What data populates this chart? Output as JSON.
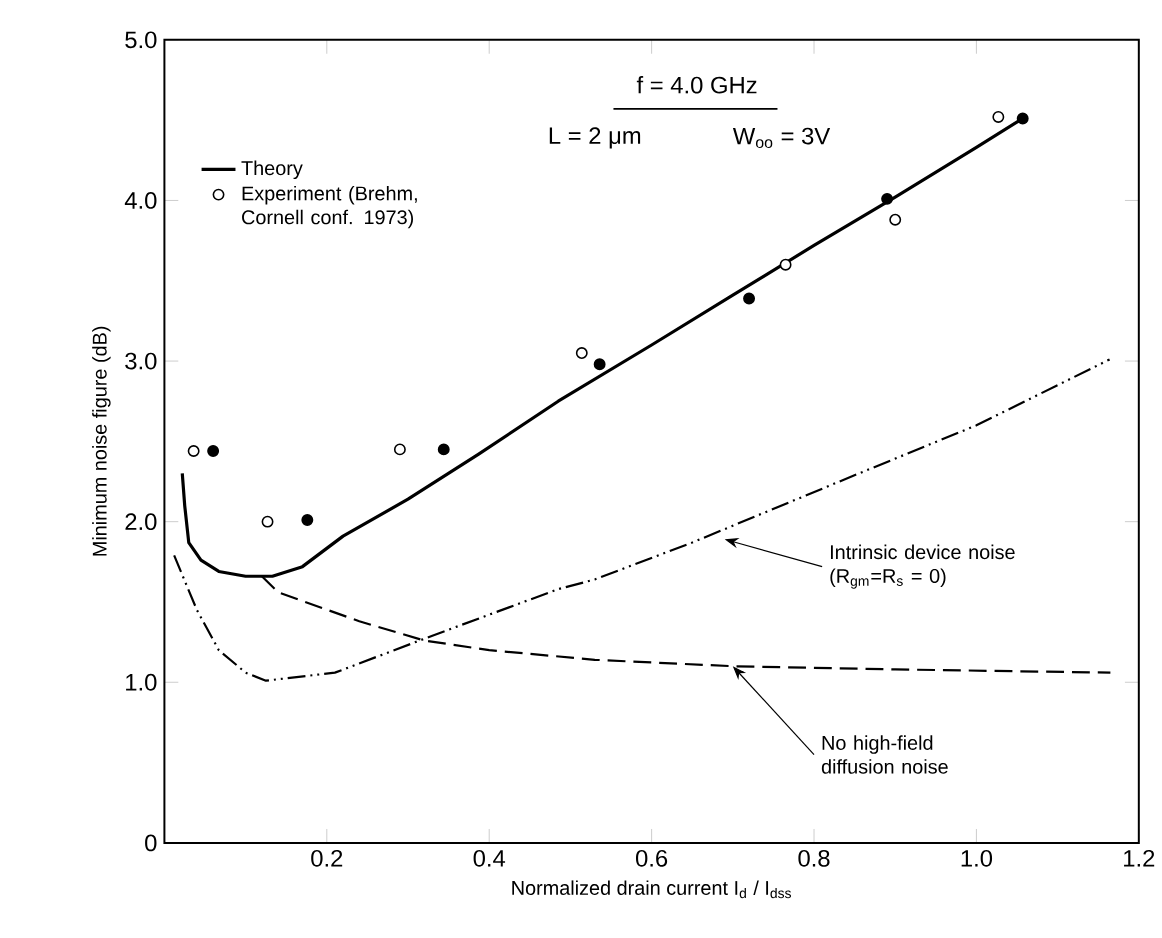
{
  "chart_data": {
    "type": "line",
    "xlabel": "Normalized drain current I$_{d}$ / I$_{dss}$",
    "ylabel": "Minimum noise figure (dB)",
    "xlim": [
      0,
      1.2
    ],
    "ylim": [
      0,
      5
    ],
    "xticks": [
      0.2,
      0.4,
      0.6,
      0.8,
      {
        "value": 1,
        "label": "1.0"
      },
      1.2
    ],
    "yticks": [
      0,
      {
        "value": 1,
        "label": "1.0"
      },
      {
        "value": 2,
        "label": "2.0"
      },
      {
        "value": 3,
        "label": "3.0"
      },
      {
        "value": 4,
        "label": "4.0"
      },
      {
        "value": 5,
        "label": "5.0"
      }
    ],
    "grid": false,
    "legend": "top left",
    "series": [
      {
        "name": "Theory",
        "color": "#000000",
        "line_style": "solid",
        "marker": "none",
        "x": [
          0.022,
          0.025,
          0.03,
          0.045,
          0.067,
          0.1,
          0.133,
          0.17,
          0.22,
          0.3,
          0.387,
          0.485,
          0.6,
          0.7,
          0.8,
          0.9,
          1.0,
          1.057
        ],
        "values": [
          2.3,
          2.1,
          1.87,
          1.76,
          1.69,
          1.66,
          1.66,
          1.72,
          1.91,
          2.14,
          2.42,
          2.75,
          3.1,
          3.41,
          3.72,
          4.02,
          4.33,
          4.51
        ]
      },
      {
        "name": "Experiment (Brehm, Cornell conf. 1973)",
        "type": "scatter",
        "color": "#000000",
        "marker": "circle",
        "x": [
          0.036,
          0.127,
          0.29,
          0.514,
          0.765,
          0.9,
          1.027
        ],
        "values": [
          2.44,
          2.0,
          2.45,
          3.05,
          3.6,
          3.88,
          4.52
        ]
      },
      {
        "type": "scatter",
        "color": "#000000",
        "marker": "circle",
        "x": [
          0.06,
          0.176,
          0.344,
          0.536,
          0.72,
          0.89,
          1.057
        ],
        "values": [
          2.44,
          2.01,
          2.45,
          2.98,
          3.39,
          4.01,
          4.51
        ]
      },
      {
        "color": "#000000",
        "line_style": "dashed",
        "marker": "none",
        "x": [
          0.12,
          0.14,
          0.24,
          0.32,
          0.4,
          0.53,
          0.7,
          0.9,
          1.165
        ],
        "values": [
          1.66,
          1.56,
          1.38,
          1.26,
          1.2,
          1.14,
          1.1,
          1.08,
          1.06
        ]
      },
      {
        "color": "#000000",
        "line_style": "dashdotdotted",
        "marker": "none",
        "x": [
          0.012,
          0.04,
          0.067,
          0.1,
          0.125,
          0.21,
          0.33,
          0.485,
          0.53,
          0.65,
          0.86,
          1.0,
          1.164
        ],
        "values": [
          1.79,
          1.45,
          1.2,
          1.06,
          1.01,
          1.06,
          1.29,
          1.58,
          1.64,
          1.87,
          2.31,
          2.6,
          3.01
        ]
      }
    ],
    "annotations": [
      "f = 4.0 GHz",
      "L = 2 μm",
      "W$_{oo}$ = 3V",
      {
        "text": "Intrinsic device noise (R$_{gm}$=R$_{s}$ = 0)",
        "x": 0.69,
        "y": 1.89
      },
      {
        "text": "No high-field diffusion noise",
        "x": 0.7,
        "y": 1.1
      }
    ]
  }
}
